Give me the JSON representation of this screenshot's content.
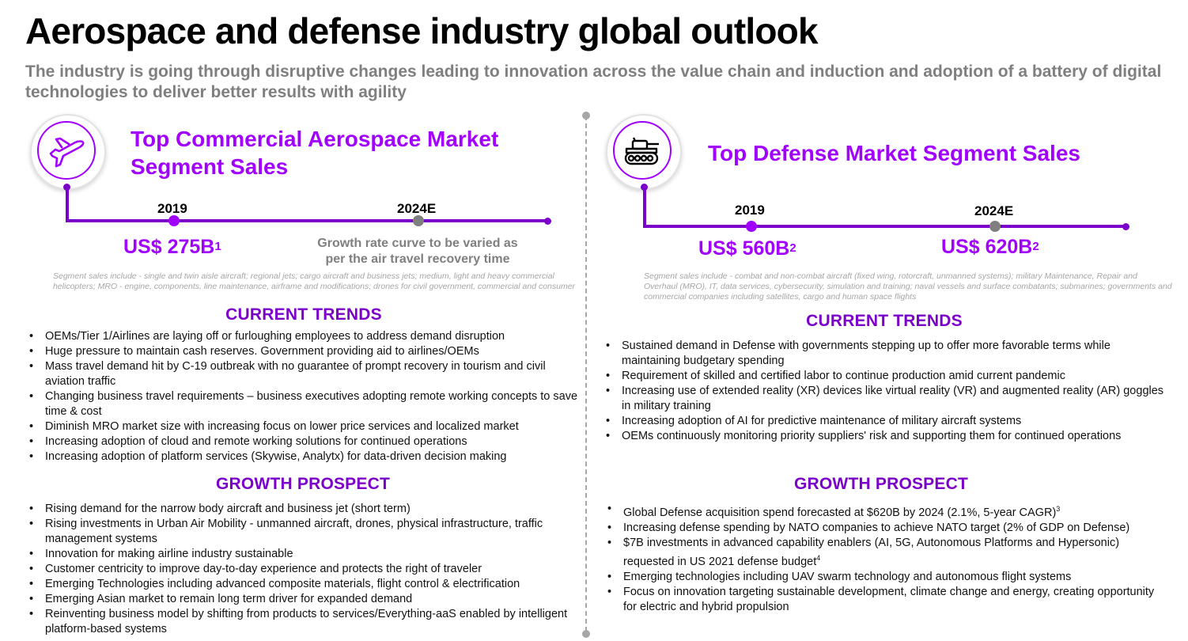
{
  "title": "Aerospace and defense industry global outlook",
  "subtitle": "The industry is going through disruptive changes leading to innovation across the value chain and induction and adoption of a battery of digital technologies to deliver better results with agility",
  "colors": {
    "accent": "#a100ff",
    "accent_dark": "#7b00c9",
    "grey": "#7f7f7f"
  },
  "left": {
    "icon": "airplane-icon",
    "heading_line1": "Top Commercial Aerospace Market",
    "heading_line2": "Segment Sales",
    "year1": "2019",
    "year2": "2024E",
    "value1": "US$ 275B",
    "value1_sup": "1",
    "note_line1": "Growth rate curve to be varied as",
    "note_line2": "per the air travel recovery time",
    "fine_print": "Segment sales include - single and twin aisle aircraft; regional jets; cargo aircraft and business jets; medium, light and heavy commercial helicopters; MRO - engine, components, line maintenance, airframe and modifications; drones for civil government, commercial and consumer",
    "trends_heading": "CURRENT TRENDS",
    "trends": [
      "OEMs/Tier 1/Airlines are laying off or furloughing employees to address demand disruption",
      "Huge pressure to maintain cash reserves. Government providing aid to airlines/OEMs",
      "Mass travel demand hit by C-19 outbreak with no guarantee of prompt recovery in tourism and civil aviation traffic",
      "Changing business travel requirements – business executives adopting remote working concepts to save time & cost",
      "Diminish MRO market size with increasing focus on lower price services and localized market",
      "Increasing adoption of cloud and remote working solutions for continued operations",
      "Increasing adoption of platform services (Skywise, Analytx) for data-driven decision making"
    ],
    "growth_heading": "GROWTH PROSPECT",
    "growth": [
      "Rising demand for the narrow body aircraft and business jet (short term)",
      "Rising investments in Urban Air Mobility - unmanned aircraft, drones, physical infrastructure, traffic management systems",
      "Innovation for making airline industry sustainable",
      "Customer centricity to improve day-to-day experience and protects the right of traveler",
      "Emerging Technologies including advanced composite materials, flight control & electrification",
      "Emerging Asian market to remain long term driver for expanded demand",
      "Reinventing business model by shifting from products to services/Everything-aaS enabled by intelligent platform-based systems"
    ]
  },
  "right": {
    "icon": "tank-icon",
    "heading": "Top Defense Market Segment Sales",
    "year1": "2019",
    "year2": "2024E",
    "value1": "US$ 560B",
    "value1_sup": "2",
    "value2": "US$ 620B",
    "value2_sup": "2",
    "fine_print": "Segment sales include - combat and non-combat aircraft (fixed wing, rotorcraft, unmanned systems); military Maintenance, Repair and Overhaul (MRO), IT, data services, cybersecurity, simulation and training; naval vessels and surface combatants; submarines; governments and commercial companies including  satellites, cargo and human space flights",
    "trends_heading": "CURRENT TRENDS",
    "trends": [
      "Sustained demand in Defense with governments stepping up to offer more favorable terms while maintaining budgetary spending",
      "Requirement of skilled and certified labor to continue production amid current pandemic",
      "Increasing use of extended reality (XR) devices like virtual reality (VR) and augmented reality (AR) goggles in military training",
      "Increasing adoption of AI for predictive maintenance of military aircraft systems",
      "OEMs continuously monitoring priority suppliers' risk and supporting them for continued operations"
    ],
    "growth_heading": "GROWTH PROSPECT",
    "growth": [
      {
        "text": "Global Defense acquisition spend forecasted at $620B by 2024 (2.1%, 5-year CAGR)",
        "sup": "3"
      },
      {
        "text": "Increasing defense spending by NATO companies to achieve NATO target (2% of GDP on Defense)",
        "sup": ""
      },
      {
        "text": "$7B investments in advanced capability enablers (AI, 5G, Autonomous Platforms and Hypersonic) requested in US 2021 defense budget",
        "sup": "4"
      },
      {
        "text": "Emerging technologies including UAV swarm technology and autonomous flight systems",
        "sup": ""
      },
      {
        "text": "Focus on innovation targeting sustainable development, climate change and energy, creating opportunity for electric and hybrid propulsion",
        "sup": ""
      }
    ]
  }
}
